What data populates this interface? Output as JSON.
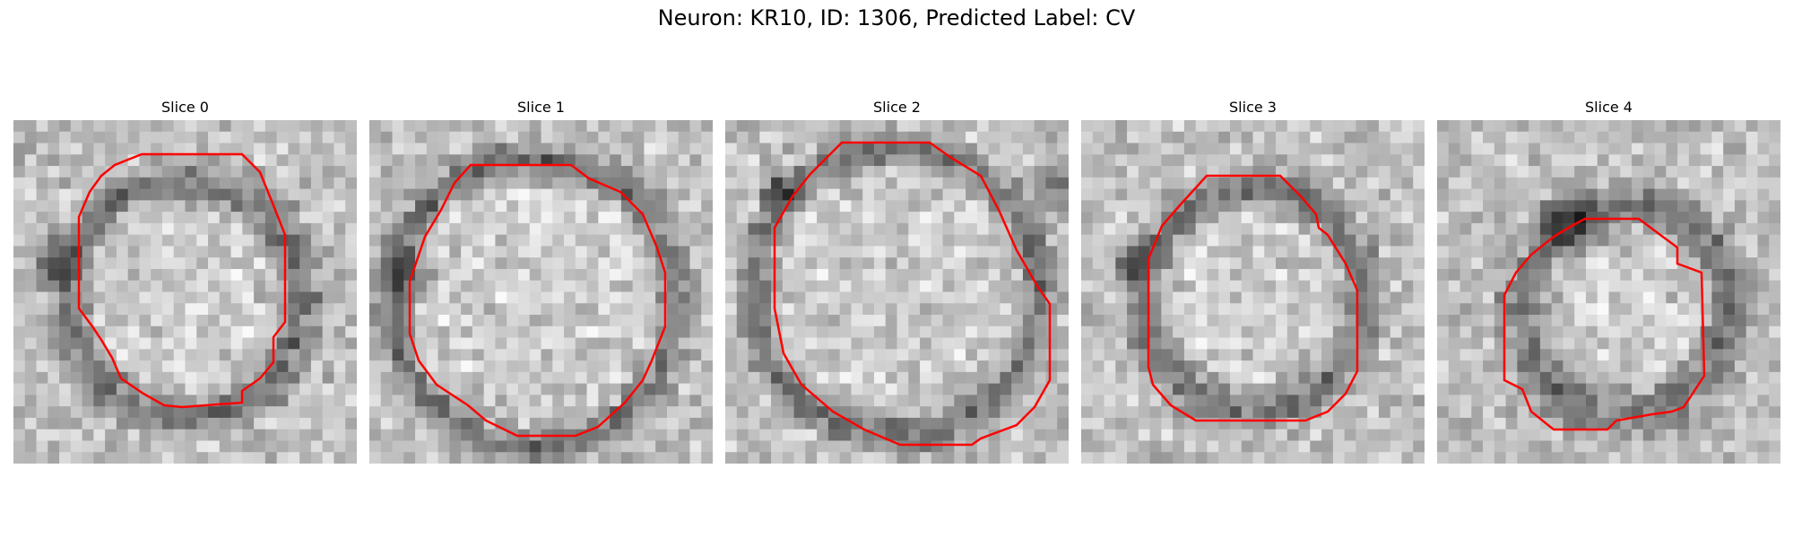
{
  "figure": {
    "title": "Neuron: KR10, ID: 1306, Predicted Label: CV"
  },
  "panels": [
    {
      "title": "Slice 0",
      "seed": 11,
      "contour": "approximate red closed polygon centered in image"
    },
    {
      "title": "Slice 1",
      "seed": 23,
      "contour": "large red polygon spanning most of the image"
    },
    {
      "title": "Slice 2",
      "seed": 37,
      "contour": "large red polygon spanning most of the image"
    },
    {
      "title": "Slice 3",
      "seed": 41,
      "contour": "medium red polygon in center"
    },
    {
      "title": "Slice 4",
      "seed": 53,
      "contour": "smaller red polygon lower-right of center"
    }
  ],
  "colors": {
    "contour": "#ff0000",
    "background": "#ffffff"
  }
}
